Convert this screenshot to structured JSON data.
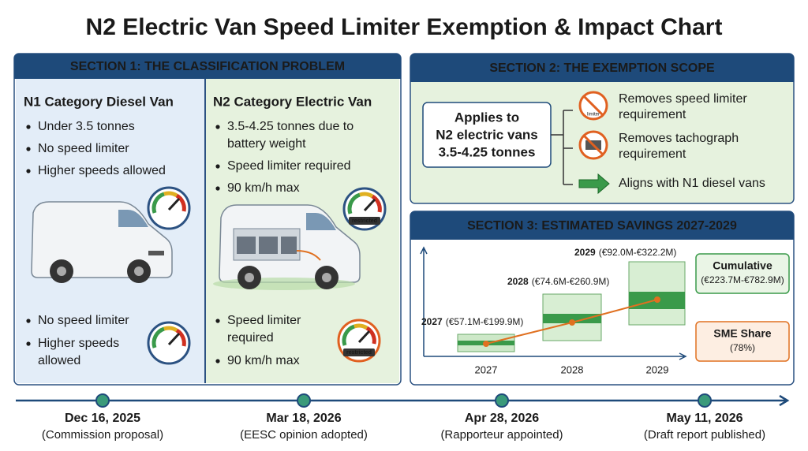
{
  "title": "N2 Electric Van Speed Limiter Exemption & Impact Chart",
  "section1": {
    "heading": "SECTION 1: THE CLASSIFICATION PROBLEM",
    "columns": [
      {
        "title": "N1 Category Diesel Van",
        "bullets": [
          [
            "Under 3.5 tonnes"
          ],
          [
            "No speed limiter"
          ],
          [
            "Higher speeds allowed"
          ]
        ],
        "bottom_bullets": [
          [
            "No speed limiter"
          ],
          [
            "Higher speeds",
            "allowed"
          ]
        ]
      },
      {
        "title": "N2 Category Electric Van",
        "bullets": [
          [
            "3.5-4.25 tonnes due to",
            "battery weight"
          ],
          [
            "Speed limiter required"
          ],
          [
            "90 km/h max"
          ]
        ],
        "bottom_bullets": [
          [
            "Speed limiter",
            "required"
          ],
          [
            "90 km/h max"
          ]
        ],
        "gauge_label": "restricted"
      }
    ]
  },
  "section2": {
    "heading": "SECTION 2: THE EXEMPTION SCOPE",
    "scope": [
      "Applies to",
      "N2 electric vans",
      "3.5-4.25 tonnes"
    ],
    "icon_label": "limiter",
    "items": [
      [
        "Removes speed limiter",
        "requirement"
      ],
      [
        "Removes tachograph",
        "requirement"
      ],
      [
        "Aligns with N1 diesel vans"
      ]
    ]
  },
  "section3": {
    "heading": "SECTION 3: ESTIMATED SAVINGS 2027-2029",
    "boxes": [
      {
        "year": "2027",
        "range": "(€57.1M-€199.9M)"
      },
      {
        "year": "2028",
        "range": "(€74.6M-€260.9M)"
      },
      {
        "year": "2029",
        "range": "(€92.0M-€322.2M)"
      }
    ],
    "cumulative": {
      "title": "Cumulative",
      "value": "(€223.7M-€782.9M)"
    },
    "sme": {
      "title": "SME Share",
      "value": "(78%)"
    }
  },
  "timeline": [
    {
      "date": "Dec 16, 2025",
      "caption": "(Commission proposal)"
    },
    {
      "date": "Mar 18, 2026",
      "caption": "(EESC opinion adopted)"
    },
    {
      "date": "Apr 28, 2026",
      "caption": "(Rapporteur appointed)"
    },
    {
      "date": "May 11, 2026",
      "caption": "(Draft report published)"
    }
  ]
}
